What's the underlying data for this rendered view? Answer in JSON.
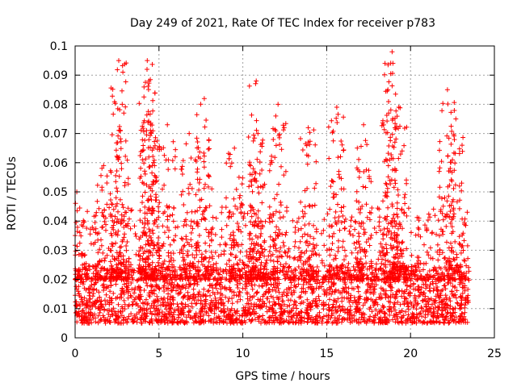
{
  "chart_data": {
    "type": "scatter",
    "title": "Day 249 of 2021, Rate Of TEC Index for receiver p783",
    "xlabel": "GPS time / hours",
    "ylabel": "ROTI / TECUs",
    "xlim": [
      0,
      25
    ],
    "ylim": [
      0,
      0.1
    ],
    "xticks": [
      "0",
      "5",
      "10",
      "15",
      "20",
      "25"
    ],
    "yticks": [
      "0",
      "0.01",
      "0.02",
      "0.03",
      "0.04",
      "0.05",
      "0.06",
      "0.07",
      "0.08",
      "0.09",
      "0.1"
    ],
    "grid": true,
    "marker": "+",
    "color": "#ff0000",
    "x_extent": [
      0,
      23.5
    ],
    "baseline_band": [
      0.005,
      0.02
    ],
    "peaks": [
      {
        "x": 0.1,
        "y": 0.05
      },
      {
        "x": 1.7,
        "y": 0.059
      },
      {
        "x": 2.6,
        "y": 0.095
      },
      {
        "x": 2.7,
        "y": 0.071
      },
      {
        "x": 4.3,
        "y": 0.095
      },
      {
        "x": 4.4,
        "y": 0.088
      },
      {
        "x": 4.5,
        "y": 0.073
      },
      {
        "x": 5.5,
        "y": 0.073
      },
      {
        "x": 6.8,
        "y": 0.07
      },
      {
        "x": 7.7,
        "y": 0.082
      },
      {
        "x": 9.5,
        "y": 0.065
      },
      {
        "x": 10.8,
        "y": 0.088
      },
      {
        "x": 10.9,
        "y": 0.07
      },
      {
        "x": 12.1,
        "y": 0.08
      },
      {
        "x": 13.9,
        "y": 0.072
      },
      {
        "x": 15.6,
        "y": 0.079
      },
      {
        "x": 17.2,
        "y": 0.073
      },
      {
        "x": 18.7,
        "y": 0.077
      },
      {
        "x": 18.9,
        "y": 0.098
      },
      {
        "x": 19.3,
        "y": 0.079
      },
      {
        "x": 22.2,
        "y": 0.085
      },
      {
        "x": 22.7,
        "y": 0.075
      }
    ]
  }
}
